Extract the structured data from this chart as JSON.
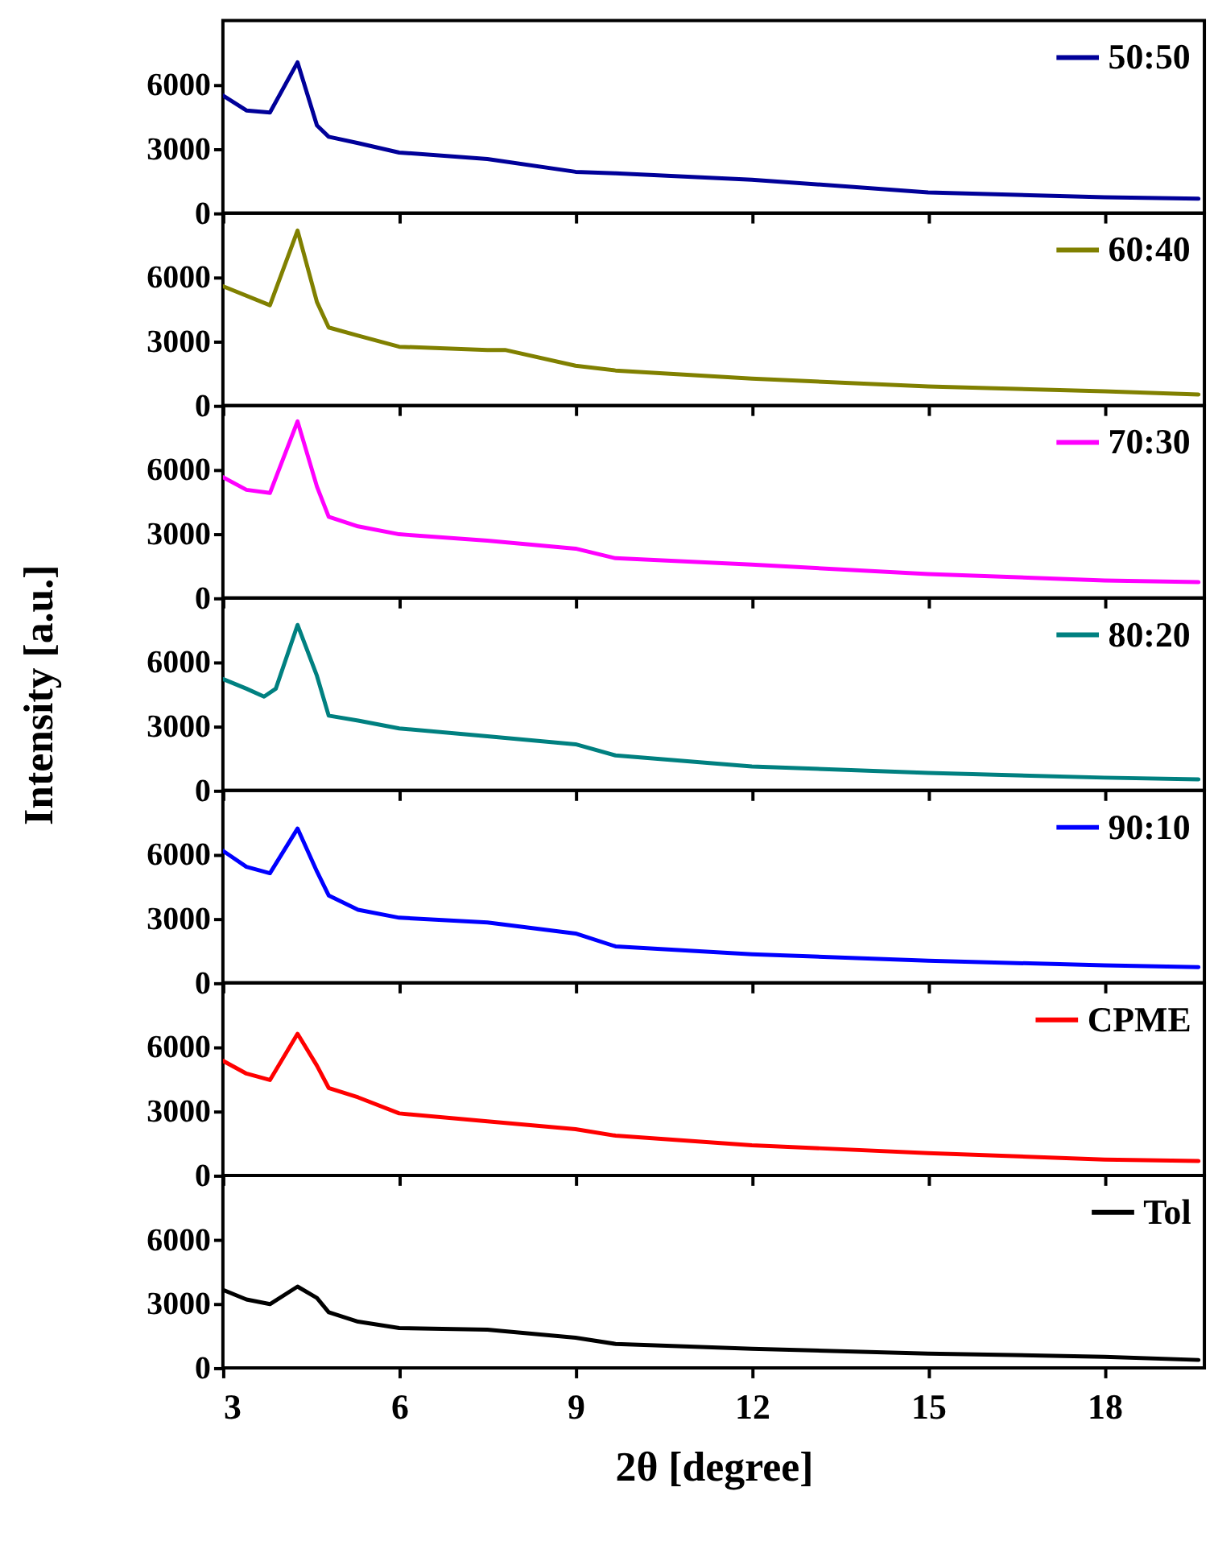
{
  "chart_data": [
    {
      "type": "line",
      "x": [
        3,
        3.4,
        3.8,
        4.27,
        4.6,
        4.8,
        5.3,
        6,
        7.5,
        9,
        9.68,
        12,
        15,
        18,
        19.6
      ],
      "series": [
        {
          "name": "50:50",
          "color": "#000099",
          "values": [
            5500,
            4800,
            4700,
            7050,
            4100,
            3570,
            3270,
            2830,
            2530,
            1930,
            1860,
            1560,
            970,
            740,
            670
          ]
        }
      ],
      "xlim": [
        3,
        19.7
      ],
      "ylim": [
        0,
        9000
      ],
      "yticks": [
        0,
        3000,
        6000
      ],
      "xticks": [
        3,
        6,
        9,
        12,
        15,
        18
      ],
      "tick_labels": "y",
      "legend": "top right",
      "grid": false
    },
    {
      "type": "line",
      "x": [
        3,
        3.8,
        4.27,
        4.6,
        4.8,
        5.3,
        6,
        7.5,
        7.8,
        9,
        9.68,
        12,
        15,
        18,
        19.6
      ],
      "series": [
        {
          "name": "60:40",
          "color": "#808000",
          "values": [
            5580,
            4690,
            8180,
            4840,
            3650,
            3270,
            2750,
            2600,
            2600,
            1860,
            1640,
            1260,
            890,
            670,
            520
          ]
        }
      ],
      "xlim": [
        3,
        19.7
      ],
      "ylim": [
        0,
        9000
      ],
      "yticks": [
        0,
        3000,
        6000
      ],
      "xticks": [
        3,
        6,
        9,
        12,
        15,
        18
      ],
      "tick_labels": "y",
      "legend": "top right",
      "grid": false
    },
    {
      "type": "line",
      "x": [
        3,
        3.4,
        3.8,
        4.27,
        4.6,
        4.8,
        5.3,
        6,
        7.5,
        9,
        9.68,
        12,
        15,
        18,
        19.6
      ],
      "series": [
        {
          "name": "70:30",
          "color": "#ff00ff",
          "values": [
            5650,
            5060,
            4910,
            8260,
            5210,
            3800,
            3350,
            2980,
            2680,
            2310,
            1860,
            1560,
            1120,
            820,
            740
          ]
        }
      ],
      "xlim": [
        3,
        19.7
      ],
      "ylim": [
        0,
        9000
      ],
      "yticks": [
        0,
        3000,
        6000
      ],
      "xticks": [
        3,
        6,
        9,
        12,
        15,
        18
      ],
      "tick_labels": "y",
      "legend": "top right",
      "grid": false
    },
    {
      "type": "line",
      "x": [
        3,
        3.4,
        3.7,
        3.9,
        4.27,
        4.6,
        4.8,
        5.3,
        6,
        7.5,
        9,
        9.68,
        12,
        15,
        18,
        19.6
      ],
      "series": [
        {
          "name": "80:20",
          "color": "#008080",
          "values": [
            5210,
            4760,
            4390,
            4760,
            7740,
            5360,
            3500,
            3270,
            2900,
            2530,
            2160,
            1640,
            1120,
            820,
            600,
            520
          ]
        }
      ],
      "xlim": [
        3,
        19.7
      ],
      "ylim": [
        0,
        9000
      ],
      "yticks": [
        0,
        3000,
        6000
      ],
      "xticks": [
        3,
        6,
        9,
        12,
        15,
        18
      ],
      "ylabel": "Intensity [a.u.]",
      "tick_labels": "y",
      "legend": "top right",
      "grid": false
    },
    {
      "type": "line",
      "x": [
        3,
        3.4,
        3.8,
        4.27,
        4.6,
        4.8,
        5.3,
        6,
        7.5,
        9,
        9.68,
        12,
        15,
        18,
        19.6
      ],
      "series": [
        {
          "name": "90:10",
          "color": "#0000ff",
          "values": [
            6180,
            5430,
            5130,
            7220,
            5210,
            4090,
            3420,
            3050,
            2830,
            2310,
            1710,
            1340,
            1040,
            820,
            740
          ]
        }
      ],
      "xlim": [
        3,
        19.7
      ],
      "ylim": [
        0,
        9000
      ],
      "yticks": [
        0,
        3000,
        6000
      ],
      "xticks": [
        3,
        6,
        9,
        12,
        15,
        18
      ],
      "tick_labels": "y",
      "legend": "top right",
      "grid": false
    },
    {
      "type": "line",
      "x": [
        3,
        3.4,
        3.8,
        4.27,
        4.6,
        4.8,
        5.3,
        6,
        7.5,
        9,
        9.68,
        12,
        15,
        18,
        19.6
      ],
      "series": [
        {
          "name": "CPME",
          "color": "#ff0000",
          "values": [
            5360,
            4760,
            4460,
            6620,
            5130,
            4090,
            3650,
            2900,
            2530,
            2160,
            1860,
            1410,
            1040,
            740,
            670
          ]
        }
      ],
      "xlim": [
        3,
        19.7
      ],
      "ylim": [
        0,
        9000
      ],
      "yticks": [
        0,
        3000,
        6000
      ],
      "xticks": [
        3,
        6,
        9,
        12,
        15,
        18
      ],
      "tick_labels": "y",
      "legend": "top right",
      "grid": false
    },
    {
      "type": "line",
      "x": [
        3,
        3.4,
        3.8,
        4.27,
        4.6,
        4.8,
        5.3,
        6,
        7.5,
        9,
        9.68,
        12,
        15,
        18,
        19.6
      ],
      "series": [
        {
          "name": "Tol",
          "color": "#000000",
          "values": [
            3650,
            3200,
            2980,
            3800,
            3270,
            2600,
            2160,
            1860,
            1790,
            1410,
            1120,
            890,
            670,
            520,
            370
          ]
        }
      ],
      "xlim": [
        3,
        19.7
      ],
      "ylim": [
        0,
        9000
      ],
      "yticks": [
        0,
        3000,
        6000
      ],
      "xticks": [
        3,
        6,
        9,
        12,
        15,
        18
      ],
      "xlabel": "2θ [degree]",
      "legend": "top right",
      "grid": false
    }
  ]
}
